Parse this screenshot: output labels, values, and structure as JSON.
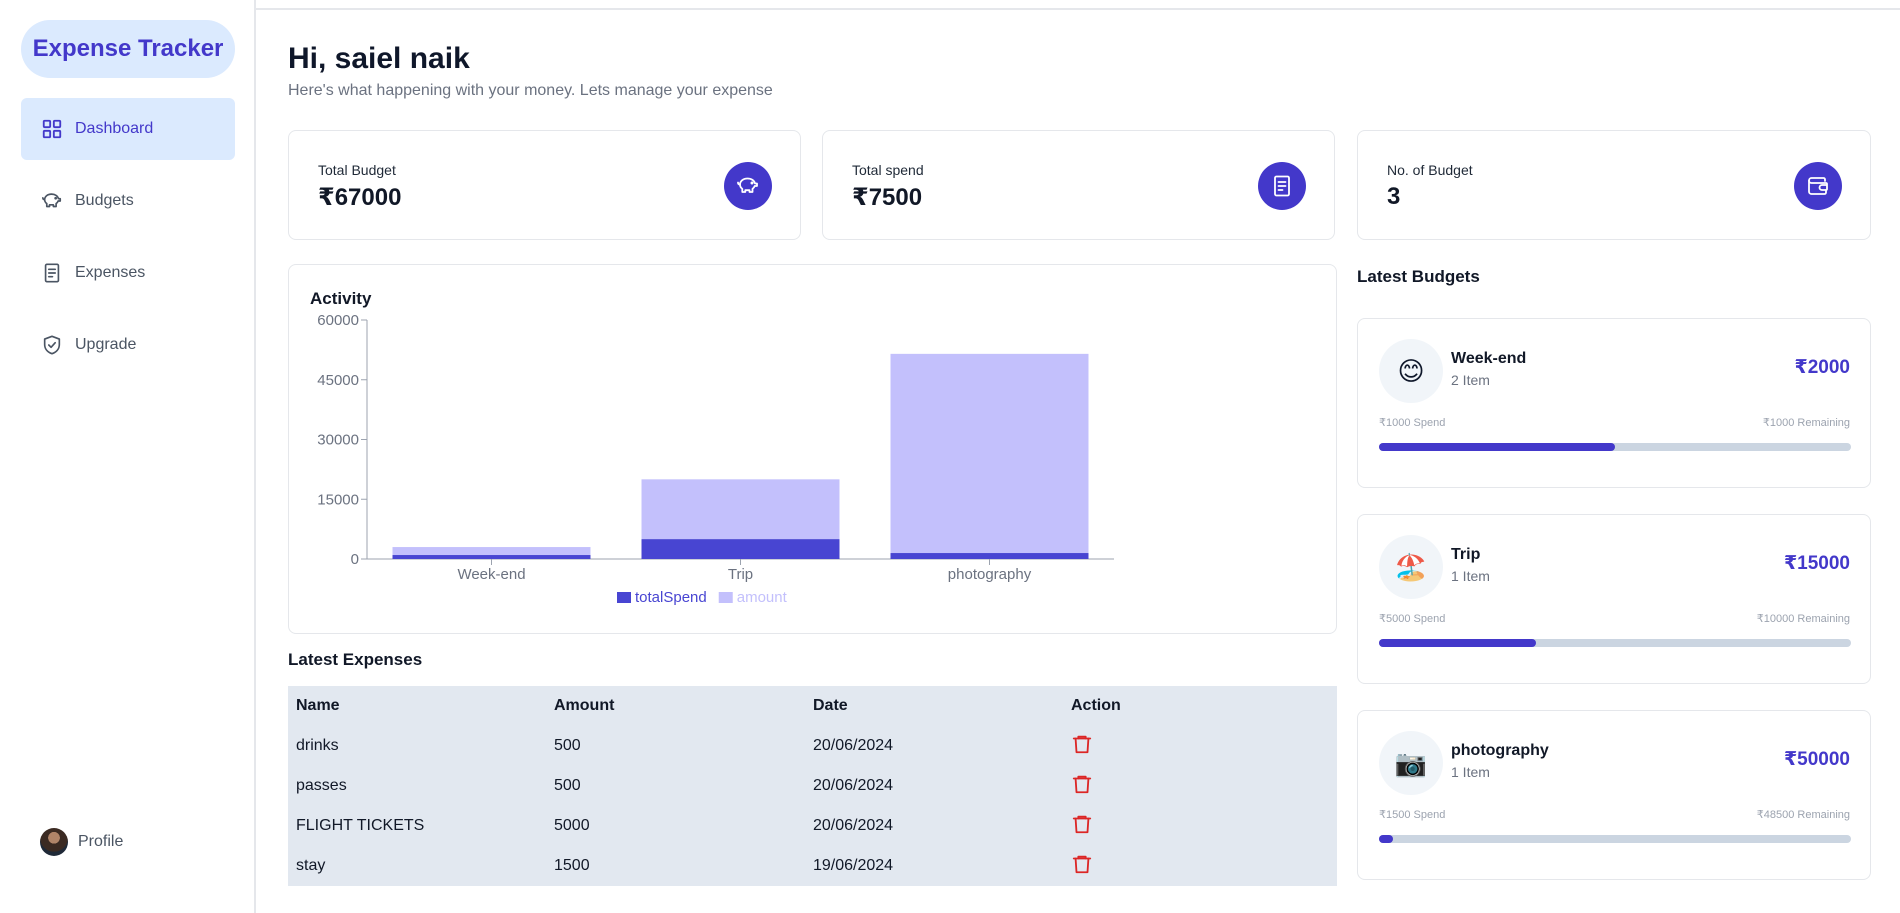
{
  "app": {
    "title": "Expense Tracker"
  },
  "sidebar": {
    "items": [
      {
        "label": "Dashboard",
        "icon": "grid-icon"
      },
      {
        "label": "Budgets",
        "icon": "piggy-bank-icon"
      },
      {
        "label": "Expenses",
        "icon": "receipt-icon"
      },
      {
        "label": "Upgrade",
        "icon": "shield-check-icon"
      }
    ],
    "profile_label": "Profile"
  },
  "header": {
    "greeting": "Hi, saiel naik",
    "subtitle": "Here's what happening with your money. Lets manage your expense"
  },
  "cards": [
    {
      "label": "Total Budget",
      "value": "₹67000",
      "icon": "piggy-bank-icon"
    },
    {
      "label": "Total spend",
      "value": "₹7500",
      "icon": "receipt-icon"
    },
    {
      "label": "No. of Budget",
      "value": "3",
      "icon": "wallet-icon"
    }
  ],
  "activity": {
    "title": "Activity"
  },
  "chart_data": {
    "type": "bar",
    "stacked": true,
    "categories": [
      "Week-end",
      "Trip",
      "photography"
    ],
    "series": [
      {
        "name": "totalSpend",
        "values": [
          1000,
          5000,
          1500
        ],
        "color": "#4845d2"
      },
      {
        "name": "amount",
        "values": [
          2000,
          15000,
          50000
        ],
        "color": "#c3c0fc"
      }
    ],
    "yticks": [
      "0",
      "15000",
      "30000",
      "45000",
      "60000"
    ],
    "ylim": [
      0,
      60000
    ],
    "legend": "bottom-center",
    "grid": false
  },
  "latest_expenses": {
    "title": "Latest Expenses",
    "headers": [
      "Name",
      "Amount",
      "Date",
      "Action"
    ],
    "rows": [
      {
        "name": "drinks",
        "amount": "500",
        "date": "20/06/2024"
      },
      {
        "name": "passes",
        "amount": "500",
        "date": "20/06/2024"
      },
      {
        "name": "FLIGHT TICKETS",
        "amount": "5000",
        "date": "20/06/2024"
      },
      {
        "name": "stay",
        "amount": "1500",
        "date": "19/06/2024"
      }
    ]
  },
  "latest_budgets": {
    "title": "Latest Budgets",
    "items": [
      {
        "emoji": "😊",
        "name": "Week-end",
        "items": "2 Item",
        "amount": "₹2000",
        "spend": "₹1000 Spend",
        "remaining": "₹1000 Remaining",
        "progress": 0.5
      },
      {
        "emoji": "🏖️",
        "name": "Trip",
        "items": "1 Item",
        "amount": "₹15000",
        "spend": "₹5000 Spend",
        "remaining": "₹10000 Remaining",
        "progress": 0.333
      },
      {
        "emoji": "📷",
        "name": "photography",
        "items": "1 Item",
        "amount": "₹50000",
        "spend": "₹1500 Spend",
        "remaining": "₹48500 Remaining",
        "progress": 0.03
      }
    ]
  },
  "colors": {
    "accent": "#4338ca",
    "accent_light": "#dbeafe",
    "delete": "#dc2626"
  }
}
